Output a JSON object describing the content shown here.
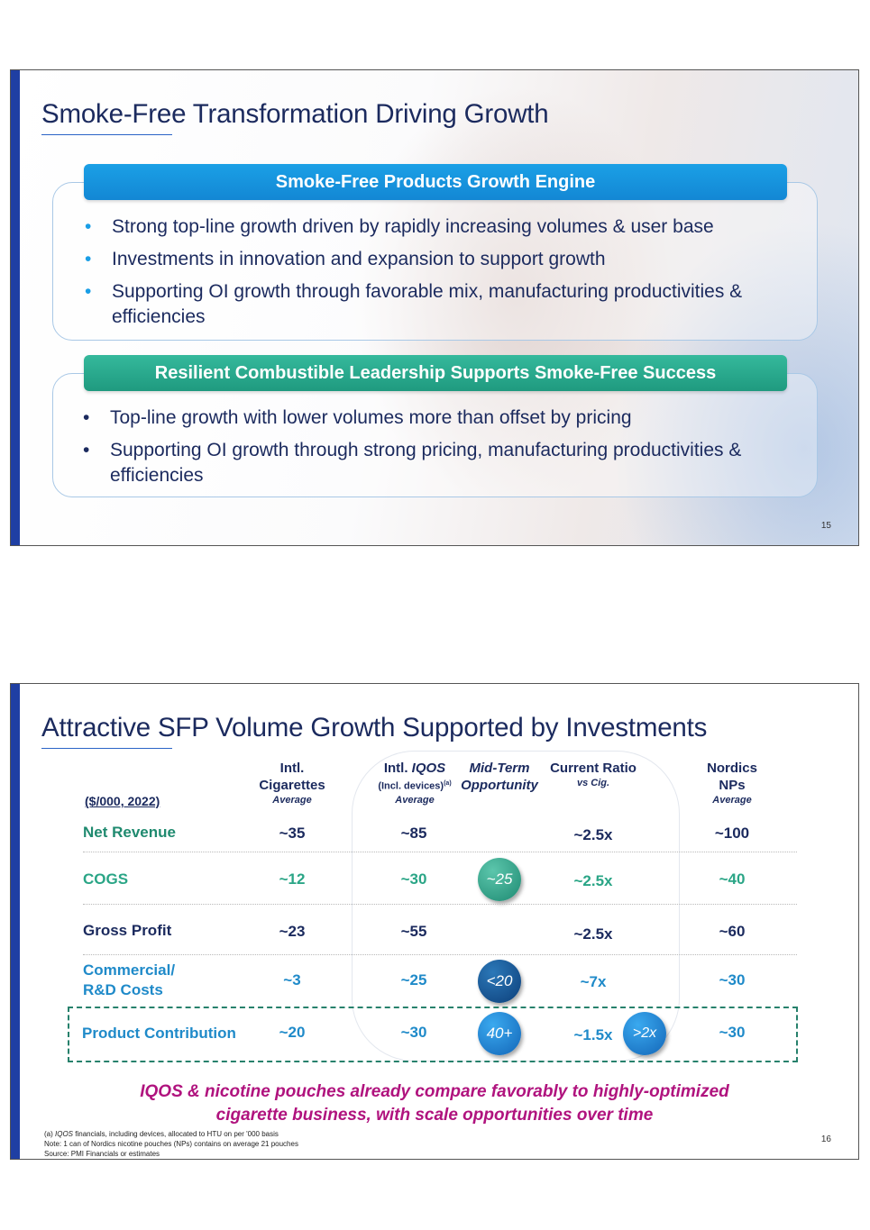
{
  "slide1": {
    "title": "Smoke-Free Transformation Driving Growth",
    "page_number": "15",
    "section1": {
      "heading": "Smoke-Free Products Growth Engine",
      "bullets": [
        "Strong top-line growth driven by rapidly increasing volumes & user base",
        "Investments in innovation and expansion to support growth",
        "Supporting OI growth through favorable mix, manufacturing productivities & efficiencies"
      ]
    },
    "section2": {
      "heading": "Resilient Combustible Leadership Supports Smoke-Free Success",
      "bullets": [
        "Top-line growth with lower volumes more than offset by pricing",
        "Supporting OI growth through strong pricing, manufacturing productivities & efficiencies"
      ]
    },
    "bullet_char": "•",
    "colors": {
      "accent_blue": "#1a9ee6",
      "accent_green": "#2aa586",
      "navy": "#1b2a5e"
    }
  },
  "slide2": {
    "title": "Attractive SFP Volume Growth Supported by Investments",
    "page_number": "16",
    "units": "($/000, 2022)",
    "columns": {
      "cig": {
        "line1": "Intl.",
        "line2": "Cigarettes",
        "sub": "Average"
      },
      "iqos": {
        "line1_prefix": "Intl. ",
        "line1_italic": "IQOS",
        "line2": "(Incl. devices)",
        "line2_sup": "(a)",
        "sub": "Average"
      },
      "midterm": {
        "line1": "Mid-Term",
        "line2": "Opportunity"
      },
      "ratio": {
        "line1": "Current Ratio",
        "sub": "vs Cig."
      },
      "nordics": {
        "line1": "Nordics",
        "line2": "NPs",
        "sub": "Average"
      }
    },
    "rows": [
      {
        "label": "Net Revenue",
        "cig": "~35",
        "iqos": "~85",
        "ratio": "~2.5x",
        "nordics": "~100"
      },
      {
        "label": "COGS",
        "cig": "~12",
        "iqos": "~30",
        "midterm": "~25",
        "ratio": "~2.5x",
        "nordics": "~40"
      },
      {
        "label": "Gross Profit",
        "cig": "~23",
        "iqos": "~55",
        "ratio": "~2.5x",
        "nordics": "~60"
      },
      {
        "label_line1": "Commercial/",
        "label_line2": "R&D Costs",
        "cig": "~3",
        "iqos": "~25",
        "midterm": "<20",
        "ratio": "~7x",
        "nordics": "~30"
      },
      {
        "label": "Product Contribution",
        "cig": "~20",
        "iqos": "~30",
        "midterm": "40+",
        "ratio": "~1.5x",
        "ratio_badge": ">2x",
        "nordics": "~30"
      }
    ],
    "callout_line1": "IQOS & nicotine pouches already compare favorably to highly-optimized",
    "callout_line2": "cigarette business, with scale opportunities over time",
    "footnote_a_prefix": "(a) ",
    "footnote_a_italic": "IQOS",
    "footnote_a_rest": " financials, including devices, allocated to HTU on per '000 basis",
    "footnote_note": "Note: 1 can of Nordics nicotine pouches (NPs) contains on average 21 pouches",
    "footnote_source": "Source: PMI Financials or estimates",
    "colors": {
      "navy": "#1b2a5e",
      "teal": "#2aa586",
      "blue": "#1f8ac9",
      "magenta": "#b0137e",
      "dash": "#27816c"
    }
  }
}
